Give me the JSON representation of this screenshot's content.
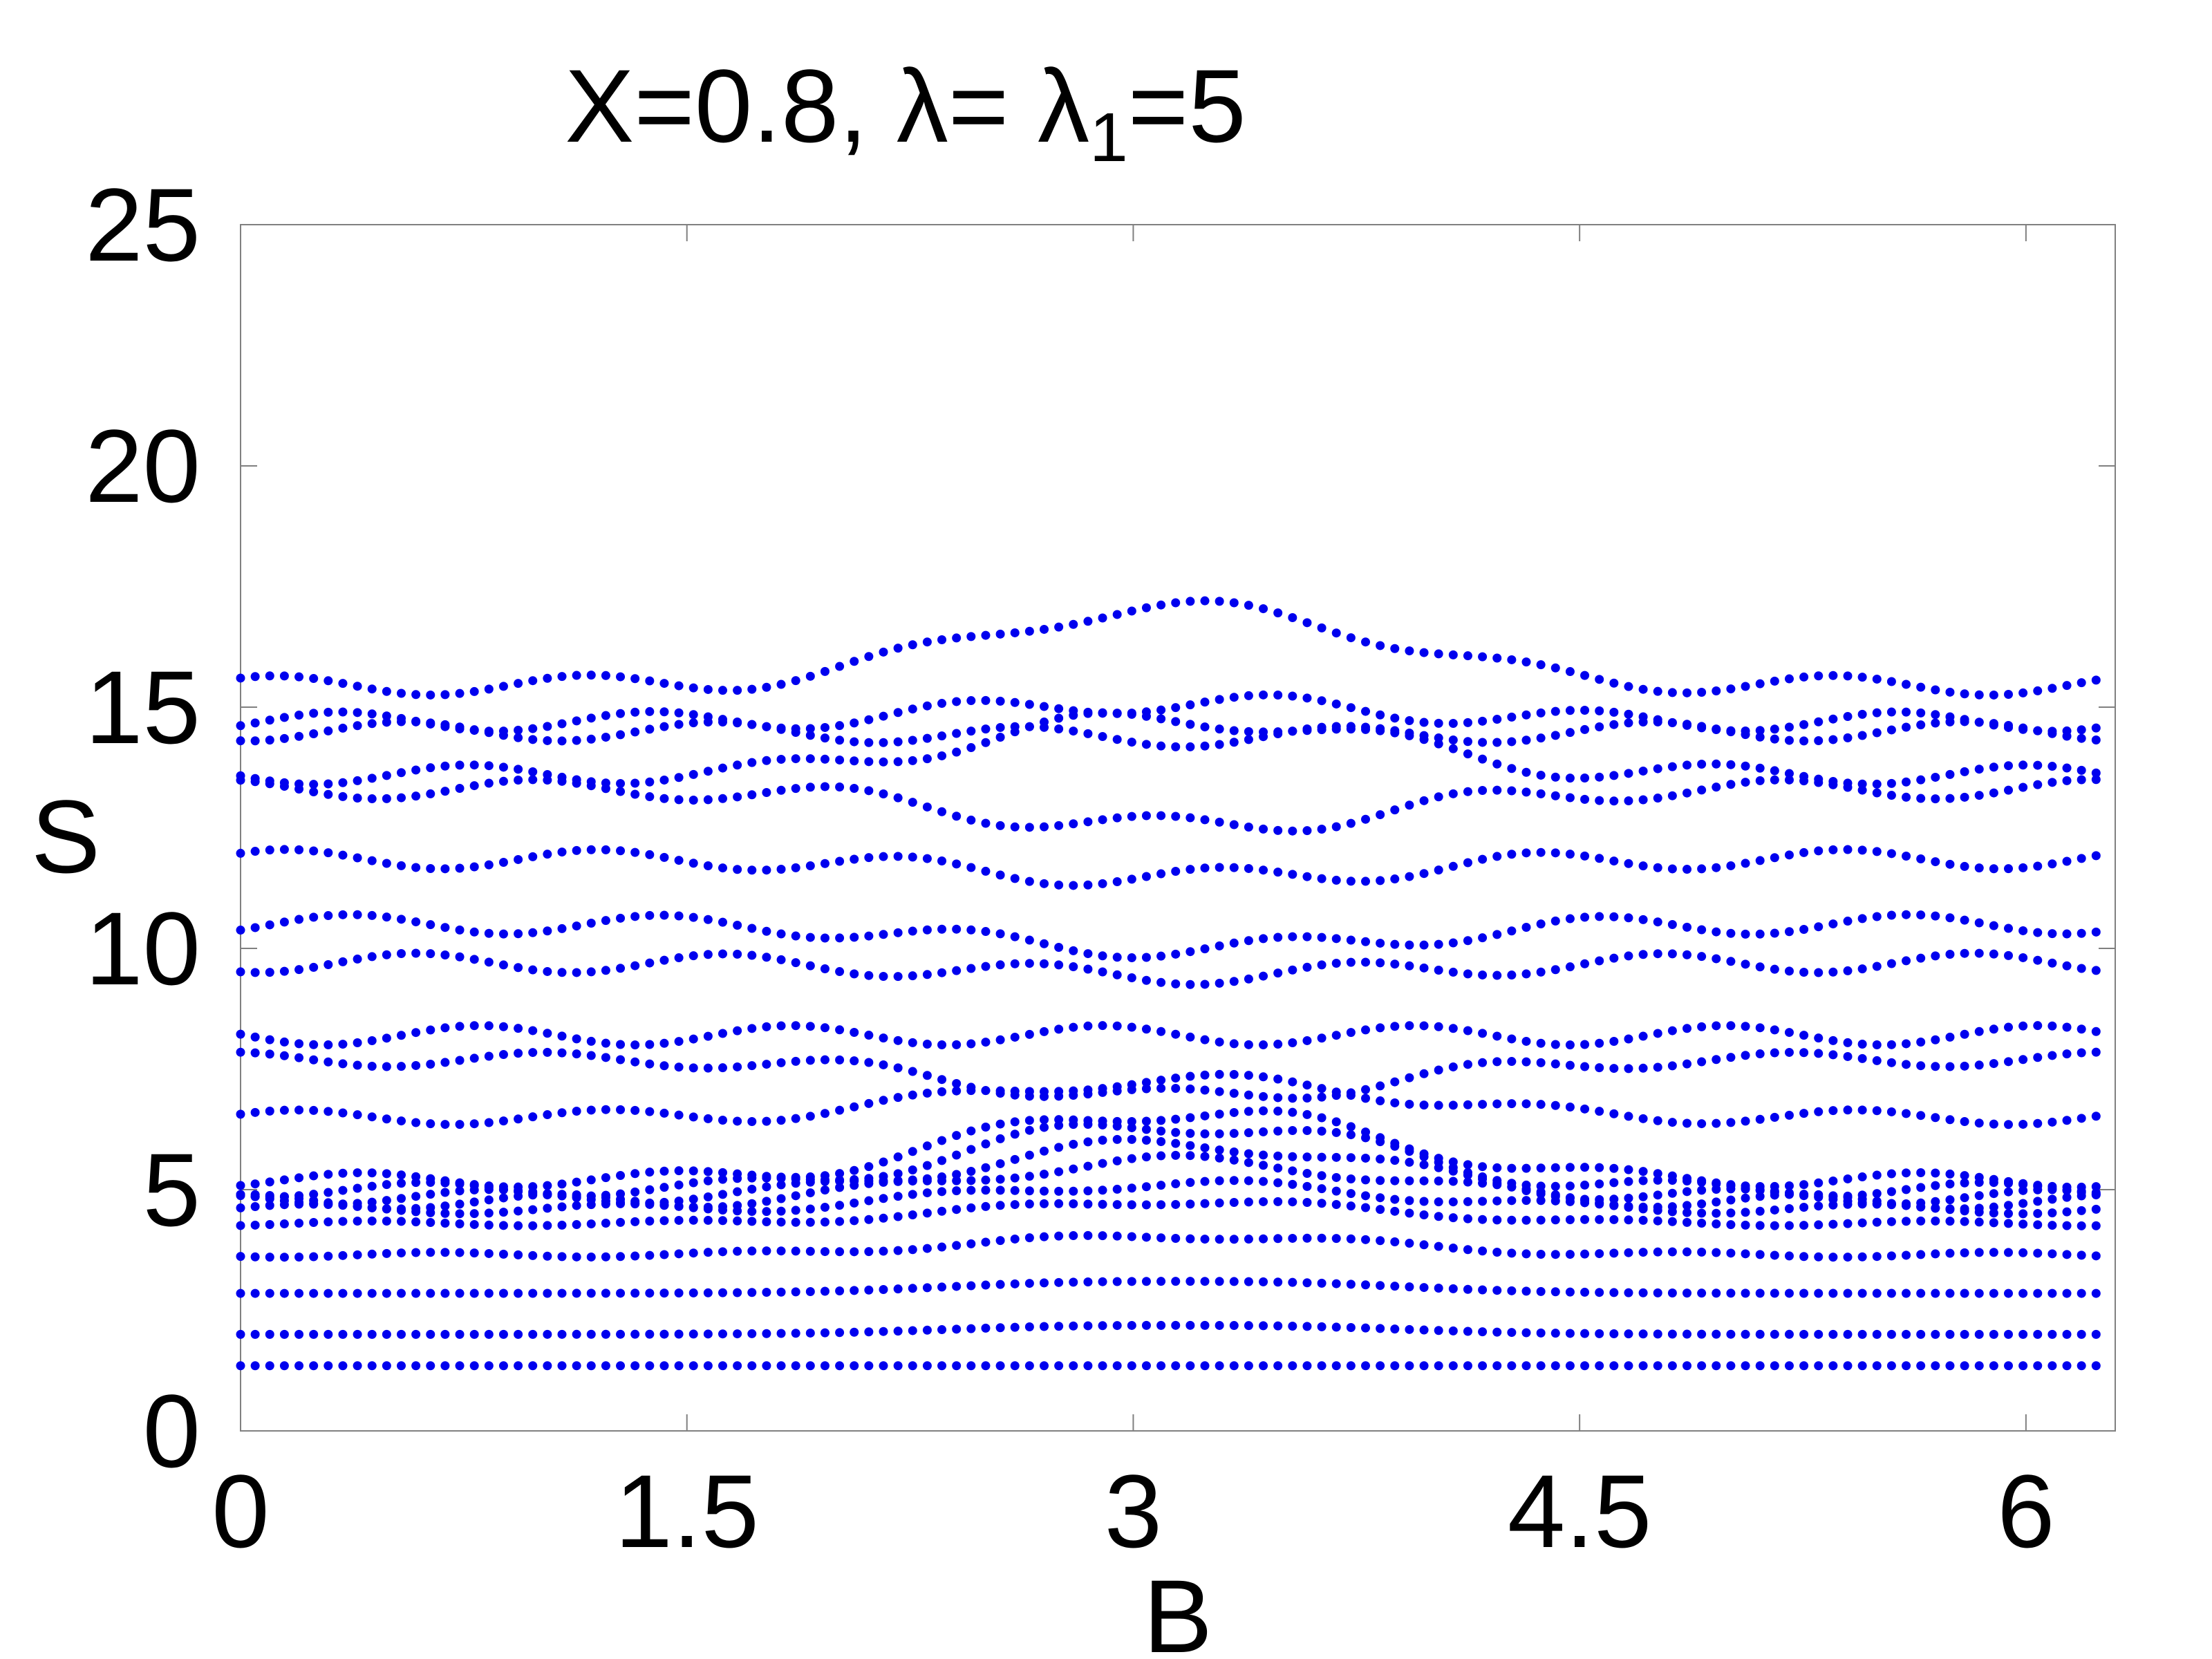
{
  "chart_data": {
    "type": "scatter",
    "title": "X=0.8, λ= λ",
    "title_subscript": "1",
    "title_suffix": "=5",
    "xlabel": "B",
    "ylabel": "S",
    "xlim": [
      0,
      6.3
    ],
    "ylim": [
      0,
      25
    ],
    "xticks": [
      0,
      1.5,
      3,
      4.5,
      6
    ],
    "xtick_labels": [
      "0",
      "1.5",
      "3",
      "4.5",
      "6"
    ],
    "yticks": [
      0,
      5,
      10,
      15,
      20,
      25
    ],
    "ytick_labels": [
      "0",
      "5",
      "10",
      "15",
      "20",
      "25"
    ],
    "grid": false,
    "marker_color": "#0000ee",
    "frame_color": "#808080",
    "x_samples": 128,
    "x_step": 0.0491,
    "series": [
      {
        "base": 1.35,
        "center": 0,
        "amp": 0
      },
      {
        "base": 2.0,
        "center": 0.15,
        "amp": 0
      },
      {
        "base": 2.85,
        "center": 0.2,
        "amp": 0
      },
      {
        "base": 3.65,
        "center": 0.3,
        "amp": 0.05
      },
      {
        "base": 4.3,
        "center": 0.35,
        "amp": 0.05
      },
      {
        "base": 4.6,
        "center": 0.4,
        "amp": 0.1
      },
      {
        "base": 4.75,
        "center": 0.65,
        "amp": 0.15
      },
      {
        "base": 4.85,
        "center": 0.85,
        "amp": 0.15
      },
      {
        "base": 5.0,
        "center": 1.05,
        "amp": 0.15
      },
      {
        "base": 5.2,
        "center": 1.1,
        "amp": 0.15
      },
      {
        "base": 6.5,
        "center": 0.6,
        "amp": 0.15
      },
      {
        "base": 7.7,
        "center": -0.6,
        "amp": 0.15
      },
      {
        "base": 8.2,
        "center": 0,
        "amp": 0.2
      },
      {
        "base": 9.7,
        "center": -0.2,
        "amp": 0.2
      },
      {
        "base": 10.5,
        "center": -0.4,
        "amp": 0.2
      },
      {
        "base": 11.85,
        "center": -0.3,
        "amp": 0.2
      },
      {
        "base": 13.3,
        "center": -0.6,
        "amp": 0.2
      },
      {
        "base": 13.6,
        "center": 0.9,
        "amp": 0.2
      },
      {
        "base": 14.5,
        "center": -0.1,
        "amp": 0.2
      },
      {
        "base": 14.7,
        "center": 0.3,
        "amp": 0.2
      },
      {
        "base": 15.45,
        "center": 1.25,
        "amp": 0.2
      }
    ]
  }
}
